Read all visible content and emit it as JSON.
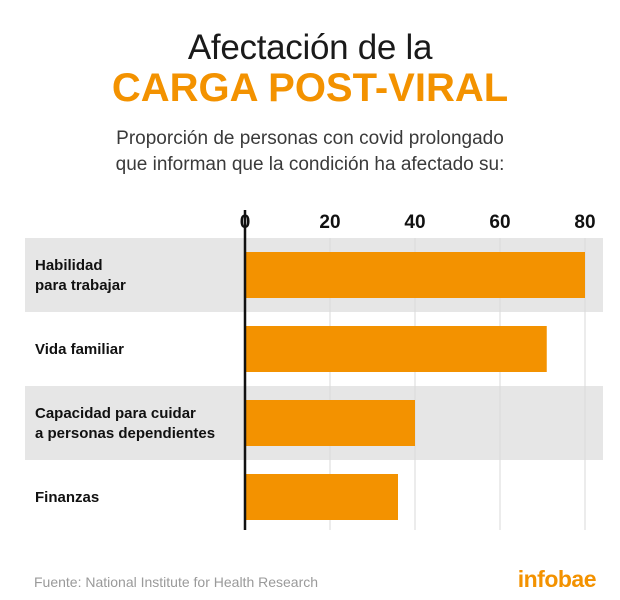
{
  "header": {
    "title_line1": "Afectación de la",
    "title_line2": "CARGA POST-VIRAL",
    "subtitle_line1": "Proporción de personas con covid prolongado",
    "subtitle_line2": "que informan que la condición ha afectado su:"
  },
  "chart_data": {
    "type": "bar",
    "orientation": "horizontal",
    "categories": [
      [
        "Habilidad",
        "para trabajar"
      ],
      [
        "Vida familiar"
      ],
      [
        "Capacidad para cuidar",
        "a personas dependientes"
      ],
      [
        "Finanzas"
      ]
    ],
    "values": [
      80,
      71,
      40,
      36
    ],
    "xticks": [
      "0",
      "20",
      "40",
      "60",
      "80"
    ],
    "xlim": [
      0,
      80
    ],
    "grid": true,
    "bar_color": "#f39200",
    "band_color": "#e6e6e6"
  },
  "footer": {
    "source": "Fuente: National Institute for Health Research",
    "logo": "infobae"
  }
}
